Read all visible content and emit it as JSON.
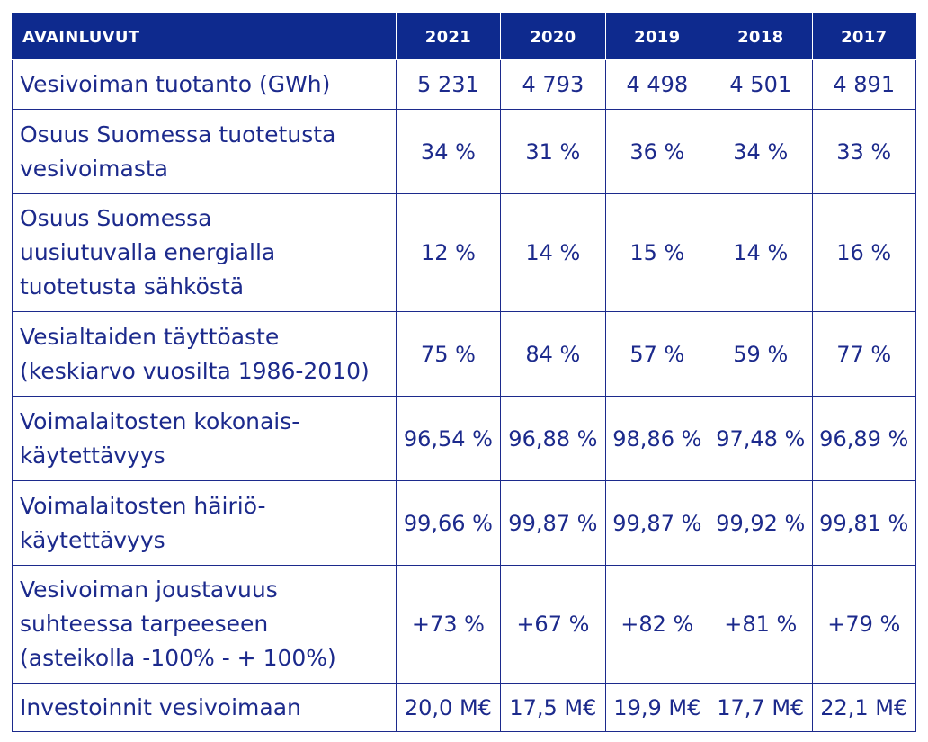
{
  "table": {
    "header": {
      "label": "AVAINLUVUT",
      "years": [
        "2021",
        "2020",
        "2019",
        "2018",
        "2017"
      ]
    },
    "rows": [
      {
        "label_lines": [
          "Vesivoiman tuotanto (GWh)"
        ],
        "values": [
          "5 231",
          "4 793",
          "4 498",
          "4 501",
          "4 891"
        ]
      },
      {
        "label_lines": [
          "Osuus Suomessa tuotetusta",
          "vesivoimasta"
        ],
        "values": [
          "34 %",
          "31 %",
          "36 %",
          "34 %",
          "33 %"
        ]
      },
      {
        "label_lines": [
          "Osuus Suomessa",
          "uusiutuvalla energialla",
          "tuotetusta sähköstä"
        ],
        "values": [
          "12 %",
          "14 %",
          "15 %",
          "14 %",
          "16 %"
        ]
      },
      {
        "label_lines": [
          "Vesialtaiden täyttöaste",
          "(keskiarvo vuosilta 1986-2010)"
        ],
        "values": [
          "75 %",
          "84 %",
          "57 %",
          "59 %",
          "77 %"
        ]
      },
      {
        "label_lines": [
          "Voimalaitosten kokonais-",
          "käytettävyys"
        ],
        "values": [
          "96,54 %",
          "96,88 %",
          "98,86 %",
          "97,48 %",
          "96,89 %"
        ]
      },
      {
        "label_lines": [
          "Voimalaitosten häiriö-",
          "käytettävyys"
        ],
        "values": [
          "99,66 %",
          "99,87 %",
          "99,87 %",
          "99,92 %",
          "99,81 %"
        ]
      },
      {
        "label_lines": [
          "Vesivoiman joustavuus",
          "suhteessa tarpeeseen",
          "(asteikolla -100% - + 100%)"
        ],
        "values": [
          "+73 %",
          "+67 %",
          "+82 %",
          "+81 %",
          "+79 %"
        ]
      },
      {
        "label_lines": [
          "Investoinnit vesivoimaan"
        ],
        "values": [
          "20,0 M€",
          "17,5 M€",
          "19,9 M€",
          "17,7 M€",
          "22,1 M€"
        ]
      }
    ]
  },
  "colors": {
    "header_bg": "#0e2a8e",
    "text": "#1c2a8c",
    "header_text": "#ffffff"
  }
}
